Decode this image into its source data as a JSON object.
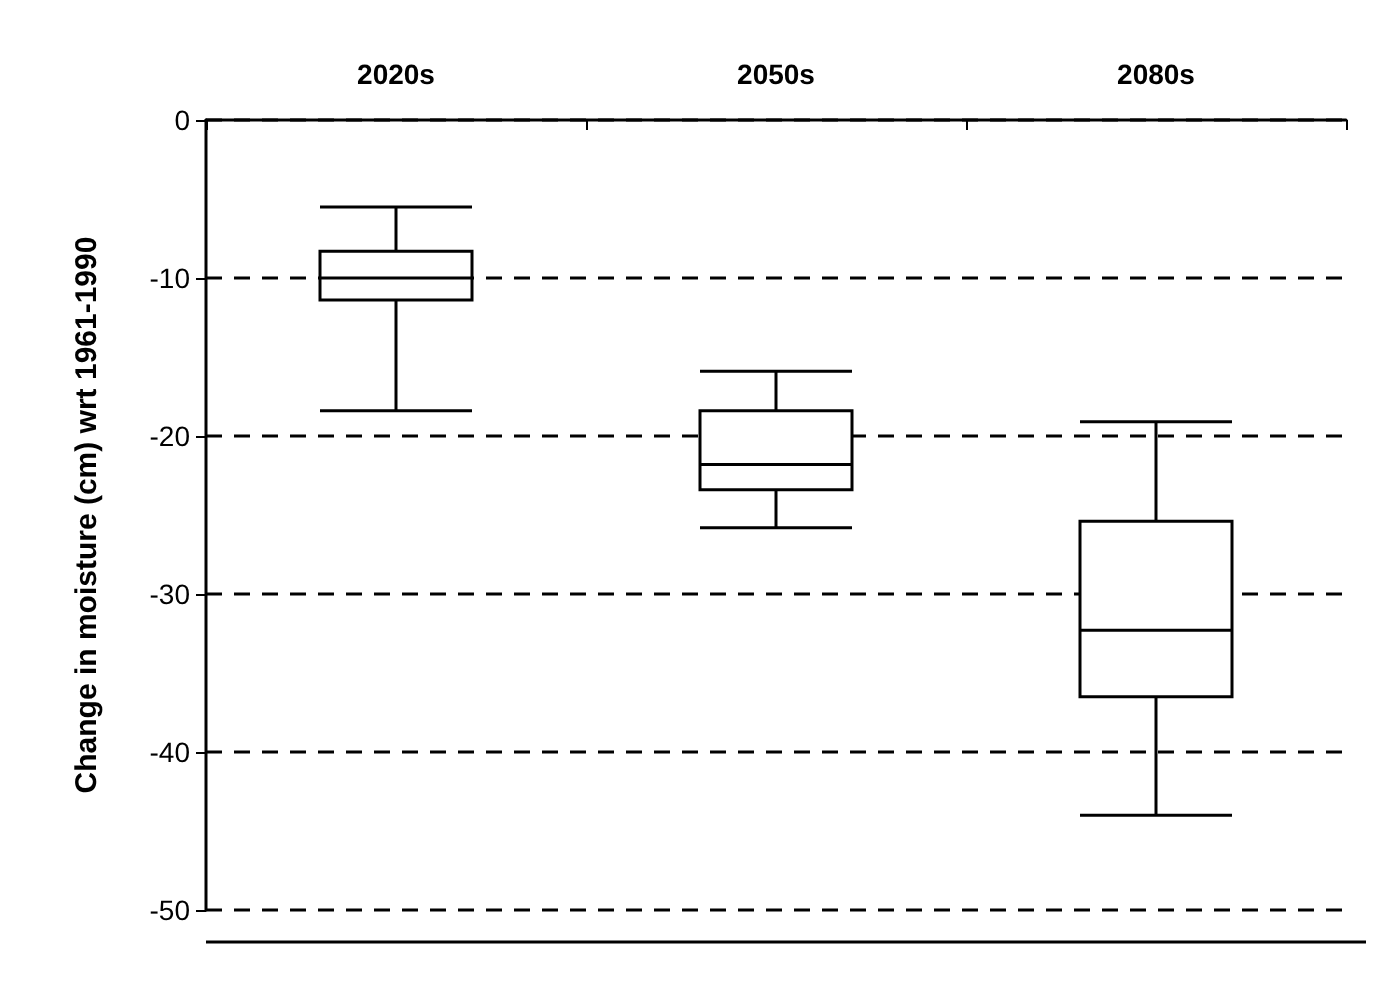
{
  "chart_data": {
    "type": "box",
    "ylabel": "Change in moisture (cm) wrt 1961-1990",
    "categories": [
      "2020s",
      "2050s",
      "2080s"
    ],
    "boxes": [
      {
        "low": -18.4,
        "q1": -11.4,
        "median": -10,
        "q3": -8.3,
        "high": -5.5
      },
      {
        "low": -25.8,
        "q1": -23.4,
        "median": -21.8,
        "q3": -18.4,
        "high": -15.9
      },
      {
        "low": -44,
        "q1": -36.5,
        "median": -32.3,
        "q3": -25.4,
        "high": -19.1
      }
    ],
    "ylim": [
      -50,
      0
    ],
    "yticks": [
      -50,
      -40,
      -30,
      -20,
      -10,
      0
    ],
    "grid": "y"
  }
}
